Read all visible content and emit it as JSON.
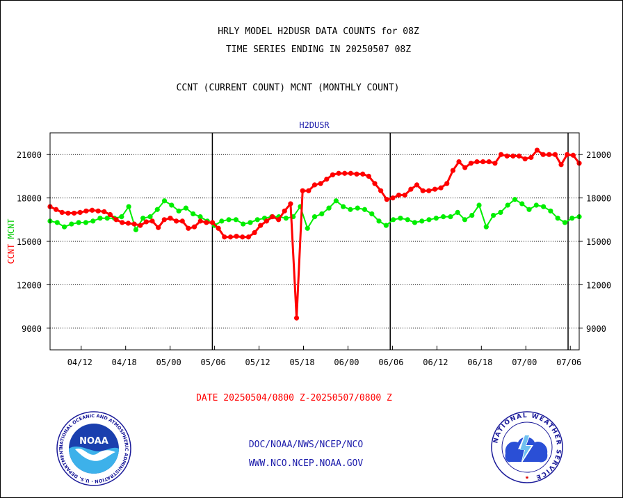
{
  "header": {
    "title_line1": "HRLY MODEL H2DUSR DATA COUNTS for 08Z",
    "title_line2": "TIME SERIES ENDING IN 20250507 08Z",
    "subtitle": "CCNT (CURRENT COUNT) MCNT (MONTHLY COUNT)"
  },
  "footer": {
    "date_range": "DATE 20250504/0800 Z-20250507/0800 Z",
    "org": "DOC/NOAA/NWS/NCEP/NCO",
    "url": "WWW.NCO.NCEP.NOAA.GOV"
  },
  "logos": {
    "left": "noaa-logo",
    "right": "nws-logo"
  },
  "chart_data": {
    "type": "line",
    "title": "H2DUSR",
    "ylabel_parts": [
      {
        "text": "CCNT",
        "color": "#ff0000"
      },
      {
        "text": "MCNT",
        "color": "#00cc00"
      }
    ],
    "ylim": [
      7500,
      22500
    ],
    "yticks": [
      9000,
      12000,
      15000,
      18000,
      21000
    ],
    "ytick_labels": [
      "9000",
      "12000",
      "15000",
      "18000",
      "21000"
    ],
    "xlim": [
      0,
      119
    ],
    "xticks": [
      {
        "pos": 7,
        "label": "04/12"
      },
      {
        "pos": 17,
        "label": "04/18"
      },
      {
        "pos": 27,
        "label": "05/00"
      },
      {
        "pos": 37,
        "label": "05/06"
      },
      {
        "pos": 47,
        "label": "05/12"
      },
      {
        "pos": 57,
        "label": "05/18"
      },
      {
        "pos": 67,
        "label": "06/00"
      },
      {
        "pos": 77,
        "label": "06/06"
      },
      {
        "pos": 87,
        "label": "06/12"
      },
      {
        "pos": 97,
        "label": "06/18"
      },
      {
        "pos": 107,
        "label": "07/00"
      },
      {
        "pos": 117,
        "label": "07/06"
      }
    ],
    "vertical_markers": [
      36.5,
      76.5,
      116.5
    ],
    "grid": "horizontal-dotted",
    "series": [
      {
        "name": "CCNT",
        "color": "#ff0000",
        "values": [
          17400,
          17200,
          17000,
          16950,
          16950,
          17000,
          17100,
          17150,
          17100,
          17050,
          16850,
          16500,
          16300,
          16250,
          16200,
          16100,
          16350,
          16400,
          15950,
          16500,
          16600,
          16400,
          16400,
          15900,
          16000,
          16400,
          16300,
          16300,
          15900,
          15300,
          15300,
          15350,
          15300,
          15300,
          15600,
          16100,
          16400,
          16700,
          16500,
          17100,
          17600,
          9700,
          18500,
          18500,
          18900,
          19000,
          19300,
          19600,
          19700,
          19700,
          19700,
          19650,
          19650,
          19500,
          19000,
          18500,
          17900,
          18000,
          18200,
          18200,
          18600,
          18900,
          18500,
          18500,
          18600,
          18700,
          19000,
          19900,
          20500,
          20100,
          20400,
          20500,
          20500,
          20500,
          20400,
          21000,
          20900,
          20900,
          20900,
          20700,
          20800,
          21300,
          21000,
          21000,
          21000,
          20300,
          21000,
          20950,
          20400
        ]
      },
      {
        "name": "MCNT",
        "color": "#00ee00",
        "values": [
          16400,
          16300,
          16000,
          16200,
          16300,
          16300,
          16400,
          16600,
          16600,
          16600,
          16700,
          17400,
          15800,
          16600,
          16700,
          17200,
          17800,
          17500,
          17100,
          17300,
          16900,
          16700,
          16400,
          16100,
          16400,
          16500,
          16500,
          16200,
          16300,
          16500,
          16600,
          16700,
          16700,
          16600,
          16700,
          17400,
          15900,
          16700,
          16900,
          17300,
          17800,
          17400,
          17200,
          17300,
          17200,
          16900,
          16400,
          16100,
          16500,
          16600,
          16500,
          16300,
          16400,
          16500,
          16600,
          16700,
          16700,
          17000,
          16500,
          16800,
          17500,
          16000,
          16800,
          17000,
          17500,
          17900,
          17600,
          17200,
          17500,
          17400,
          17100,
          16600,
          16300,
          16600,
          16700
        ]
      }
    ]
  }
}
